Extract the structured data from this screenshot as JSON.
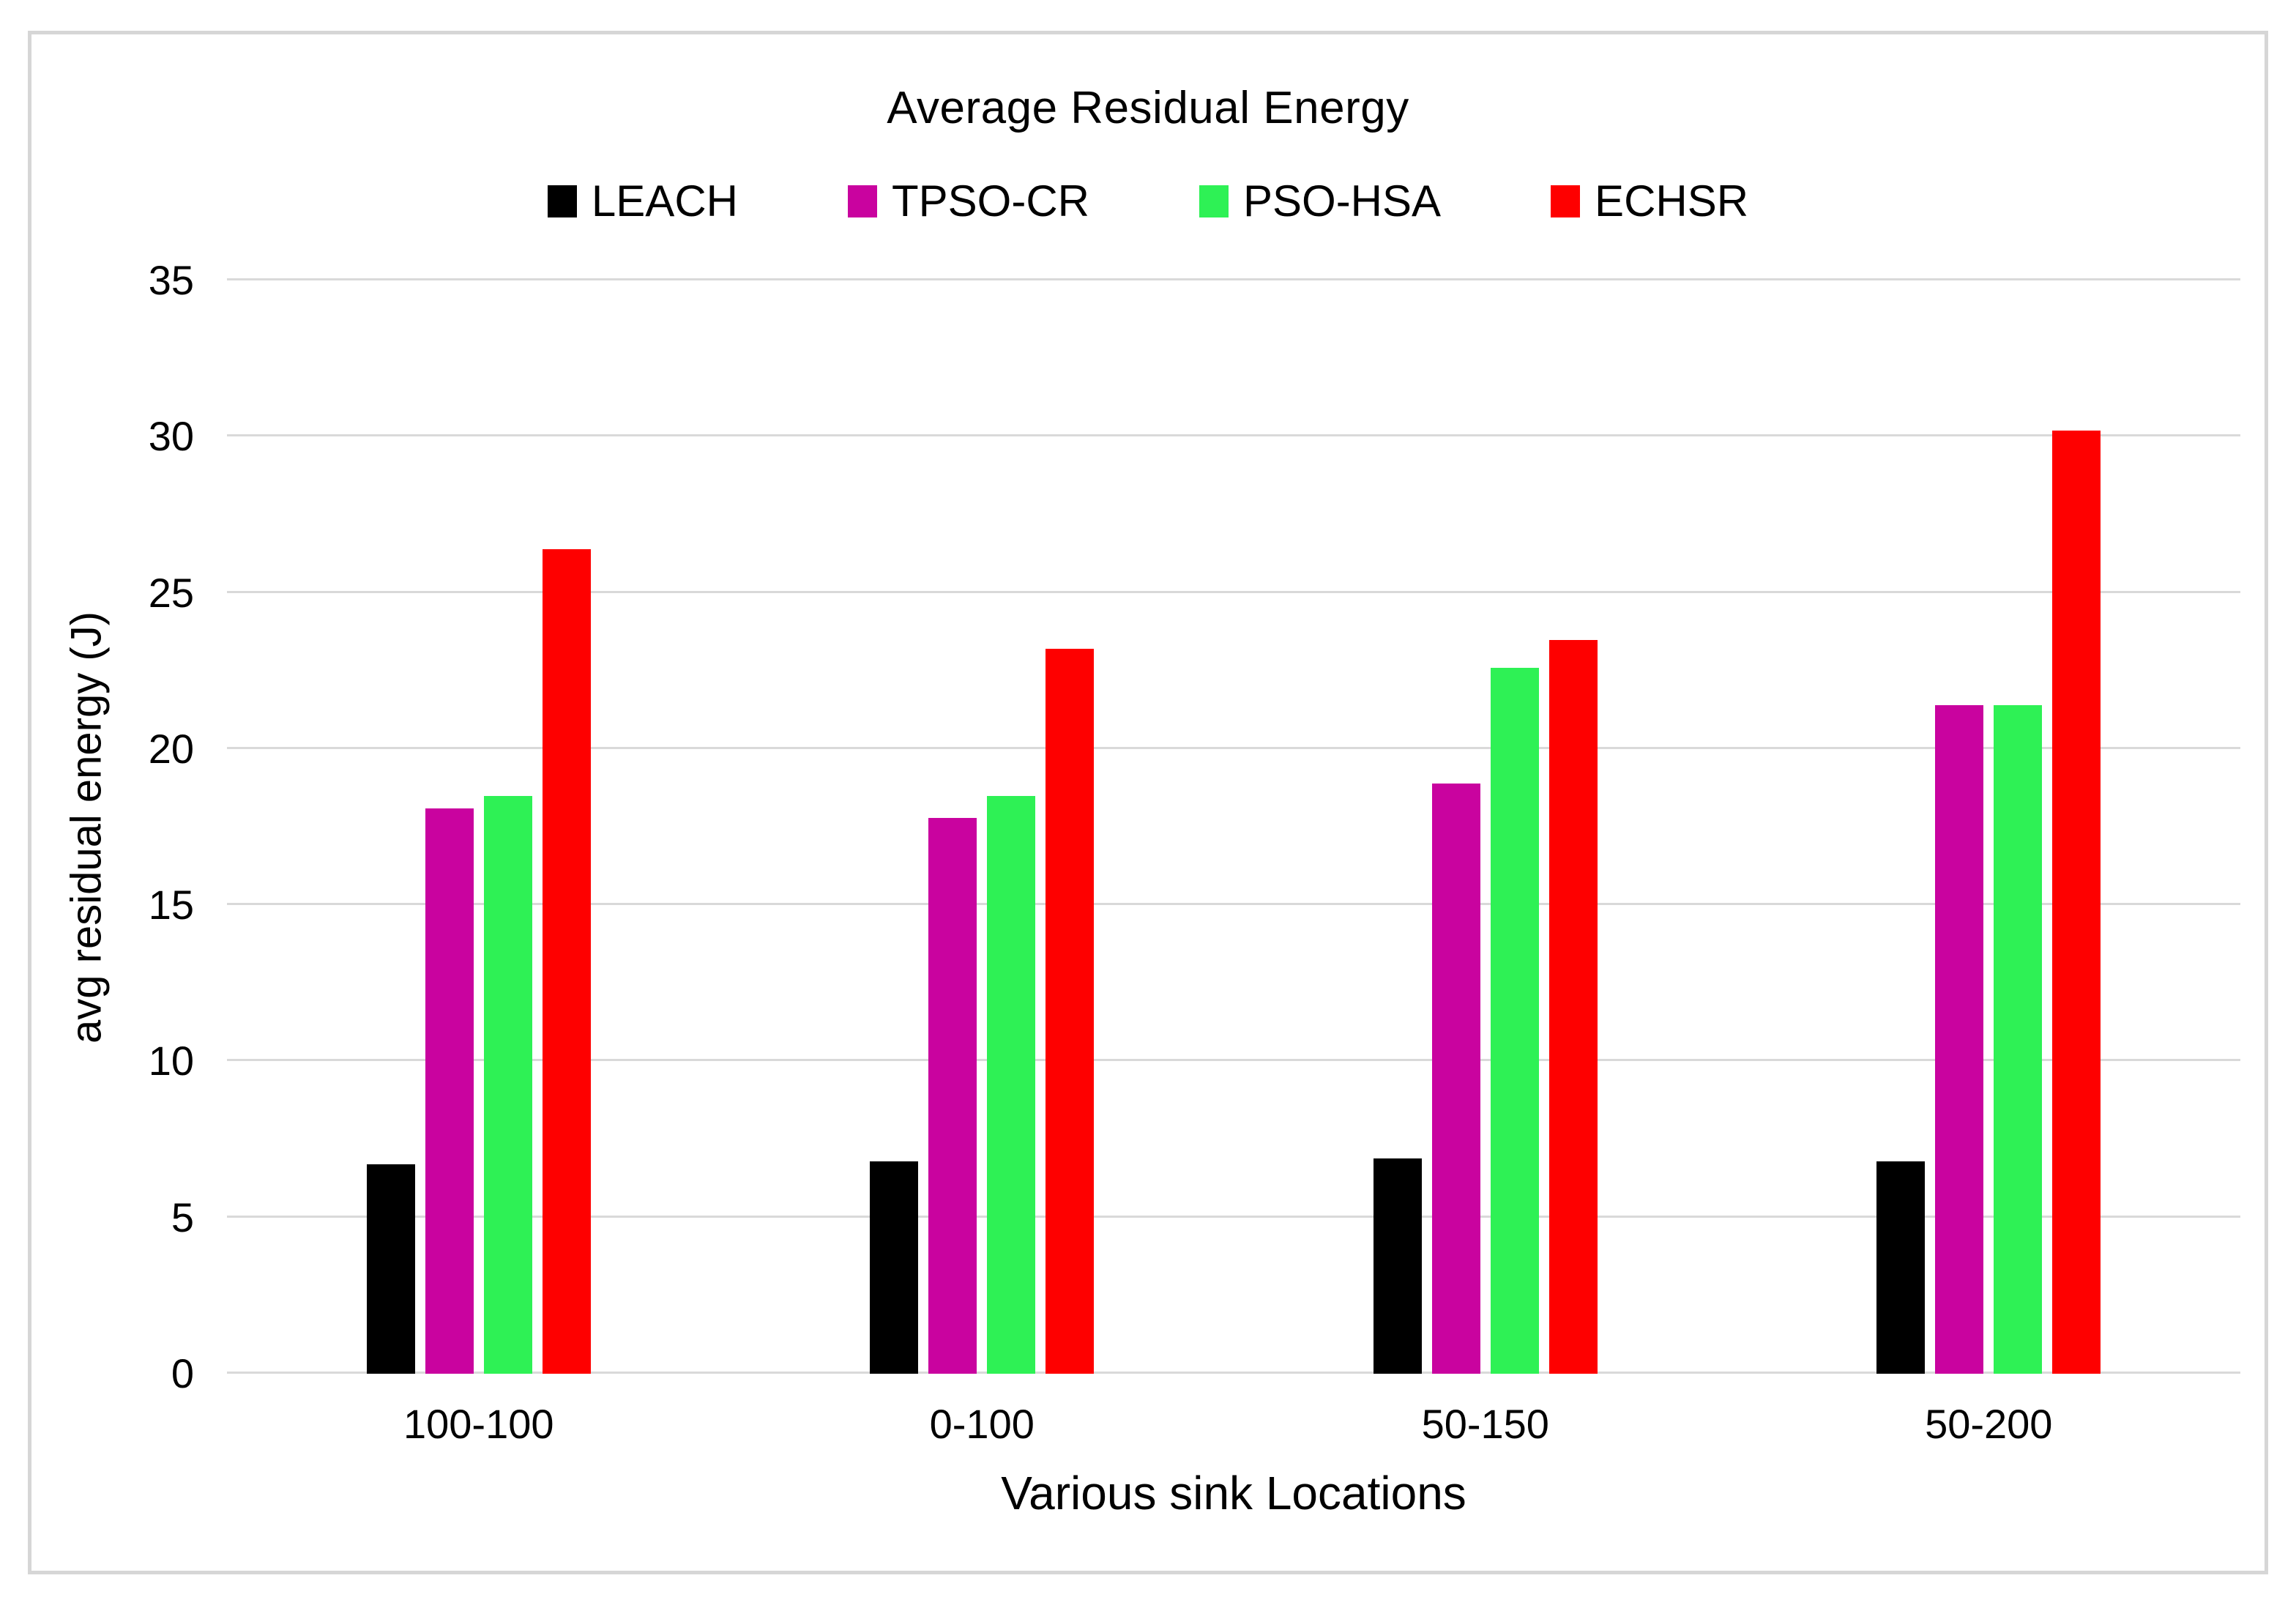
{
  "chart_data": {
    "type": "bar",
    "title": "Average Residual Energy",
    "xlabel": "Various sink Locations",
    "ylabel": "avg residual energy (J)",
    "categories": [
      "100-100",
      "0-100",
      "50-150",
      "50-200"
    ],
    "series": [
      {
        "name": "LEACH",
        "color": "#000000",
        "values": [
          6.7,
          6.8,
          6.9,
          6.8
        ]
      },
      {
        "name": "TPSO-CR",
        "color": "#C9039F",
        "values": [
          18.1,
          17.8,
          18.9,
          21.4
        ]
      },
      {
        "name": "PSO-HSA",
        "color": "#2EF155",
        "values": [
          18.5,
          18.5,
          22.6,
          21.4
        ]
      },
      {
        "name": "ECHSR",
        "color": "#FE0000",
        "values": [
          26.4,
          23.2,
          23.5,
          30.2
        ]
      }
    ],
    "ylim": [
      0,
      35
    ],
    "yticks": [
      0,
      5,
      10,
      15,
      20,
      25,
      30,
      35
    ],
    "grid": true,
    "legend_position": "top",
    "gridline_color": "#D9D9D9",
    "border_color": "#D6D6D6",
    "background": "#FFFFFF"
  }
}
